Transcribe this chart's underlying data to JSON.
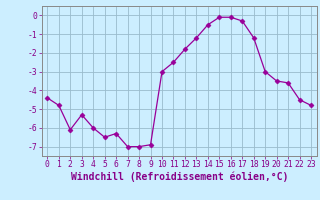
{
  "x": [
    0,
    1,
    2,
    3,
    4,
    5,
    6,
    7,
    8,
    9,
    10,
    11,
    12,
    13,
    14,
    15,
    16,
    17,
    18,
    19,
    20,
    21,
    22,
    23
  ],
  "y": [
    -4.4,
    -4.8,
    -6.1,
    -5.3,
    -6.0,
    -6.5,
    -6.3,
    -7.0,
    -7.0,
    -6.9,
    -3.0,
    -2.5,
    -1.8,
    -1.2,
    -0.5,
    -0.1,
    -0.1,
    -0.3,
    -1.2,
    -3.0,
    -3.5,
    -3.6,
    -4.5,
    -4.8
  ],
  "line_color": "#990099",
  "marker": "D",
  "marker_size": 2.5,
  "bg_color": "#cceeff",
  "grid_color": "#99bbcc",
  "xlabel": "Windchill (Refroidissement éolien,°C)",
  "ylim": [
    -7.5,
    0.5
  ],
  "xlim": [
    -0.5,
    23.5
  ],
  "yticks": [
    0,
    -1,
    -2,
    -3,
    -4,
    -5,
    -6,
    -7
  ],
  "xticks": [
    0,
    1,
    2,
    3,
    4,
    5,
    6,
    7,
    8,
    9,
    10,
    11,
    12,
    13,
    14,
    15,
    16,
    17,
    18,
    19,
    20,
    21,
    22,
    23
  ],
  "tick_fontsize": 5.8,
  "xlabel_fontsize": 7.0,
  "label_color": "#880088",
  "spine_color": "#888888",
  "axis_bg": "#cceeff"
}
